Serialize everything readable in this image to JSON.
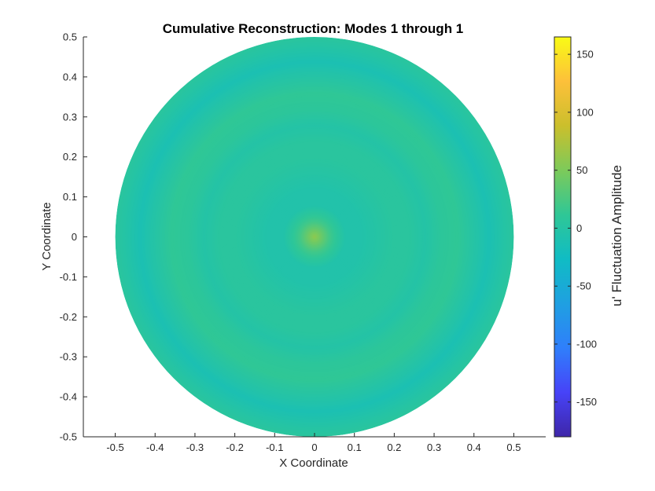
{
  "chart_data": {
    "type": "heatmap",
    "title": "Cumulative Reconstruction: Modes 1 through 1",
    "xlabel": "X Coordinate",
    "ylabel": "Y Coordinate",
    "xlim": [
      -0.58,
      0.58
    ],
    "ylim": [
      -0.5,
      0.5
    ],
    "x_ticks": [
      "-0.5",
      "-0.4",
      "-0.3",
      "-0.2",
      "-0.1",
      "0",
      "0.1",
      "0.2",
      "0.3",
      "0.4",
      "0.5"
    ],
    "x_tick_values": [
      -0.5,
      -0.4,
      -0.3,
      -0.2,
      -0.1,
      0,
      0.1,
      0.2,
      0.3,
      0.4,
      0.5
    ],
    "y_ticks": [
      "0.5",
      "0.4",
      "0.3",
      "0.2",
      "0.1",
      "0",
      "-0.1",
      "-0.2",
      "-0.3",
      "-0.4",
      "-0.5"
    ],
    "y_tick_values": [
      0.5,
      0.4,
      0.3,
      0.2,
      0.1,
      0,
      -0.1,
      -0.2,
      -0.3,
      -0.4,
      -0.5
    ],
    "domain": "disk",
    "disk_radius": 0.5,
    "disk_center": [
      0,
      0
    ],
    "field_description_radial": {
      "r": [
        0.0,
        0.04,
        0.08,
        0.12,
        0.16,
        0.2,
        0.24,
        0.28,
        0.32,
        0.36,
        0.4,
        0.44,
        0.48,
        0.5
      ],
      "value": [
        60,
        20,
        -5,
        -5,
        0,
        5,
        5,
        -2,
        8,
        12,
        0,
        -12,
        0,
        5
      ]
    },
    "colorbar": {
      "label": "u' Fluctuation Amplitude",
      "range": [
        -180,
        165
      ],
      "ticks": [
        "150",
        "100",
        "50",
        "0",
        "-50",
        "-100",
        "-150"
      ],
      "tick_values": [
        150,
        100,
        50,
        0,
        -50,
        -100,
        -150
      ],
      "colormap": "parula",
      "colormap_stops": [
        "#3e26a8",
        "#4743f8",
        "#2f7ffb",
        "#1fa0e1",
        "#10bcc4",
        "#2fc796",
        "#7dca5a",
        "#cbbf2c",
        "#fdc03a",
        "#f9fb15"
      ]
    },
    "grid": false
  }
}
